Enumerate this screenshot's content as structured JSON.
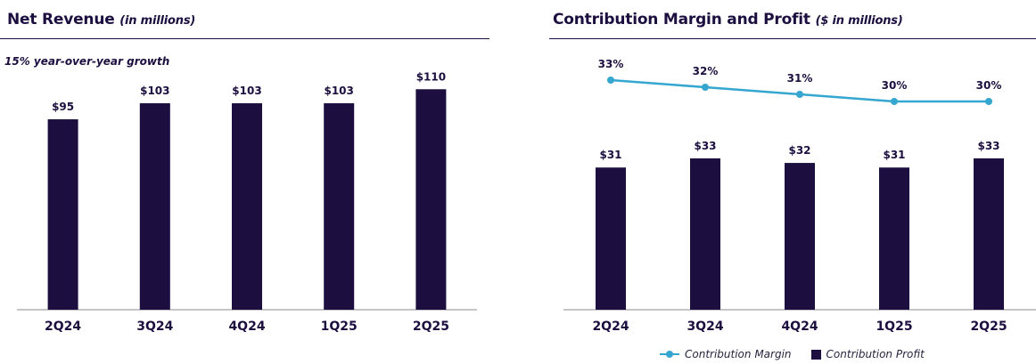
{
  "colors": {
    "bar": "#1c0f3f",
    "line": "#35a6cf",
    "axis": "#8c8c8c",
    "text": "#1c0f3f"
  },
  "left": {
    "title": "Net Revenue",
    "title_sub": "(in millions)",
    "note": "15% year-over-year growth"
  },
  "right": {
    "title": "Contribution Margin and Profit",
    "title_sub": "($ in millions)"
  },
  "legend": {
    "line_label": "Contribution Margin",
    "bar_label": "Contribution Profit"
  },
  "chart_data": [
    {
      "type": "bar",
      "title": "Net Revenue (in millions)",
      "subtitle": "15% year-over-year growth",
      "categories": [
        "2Q24",
        "3Q24",
        "4Q24",
        "1Q25",
        "2Q25"
      ],
      "values": [
        95,
        103,
        103,
        103,
        110
      ],
      "labels": [
        "$95",
        "$103",
        "$103",
        "$103",
        "$110"
      ],
      "ylim": [
        0,
        119
      ],
      "xlabel": "",
      "ylabel": "",
      "grid": false
    },
    {
      "type": "bar+line",
      "title": "Contribution Margin and Profit ($ in millions)",
      "categories": [
        "2Q24",
        "3Q24",
        "4Q24",
        "1Q25",
        "2Q25"
      ],
      "series": [
        {
          "name": "Contribution Profit",
          "kind": "bar",
          "values": [
            31,
            33,
            32,
            31,
            33
          ],
          "labels": [
            "$31",
            "$33",
            "$32",
            "$31",
            "$33"
          ]
        },
        {
          "name": "Contribution Margin",
          "kind": "line",
          "values": [
            33,
            32,
            31,
            30,
            30
          ],
          "labels": [
            "33%",
            "32%",
            "31%",
            "30%",
            "30%"
          ]
        }
      ],
      "bar_ylim": [
        0,
        52
      ],
      "line_ylim": [
        27,
        34.5
      ],
      "legend_position": "bottom-center",
      "grid": false
    }
  ]
}
